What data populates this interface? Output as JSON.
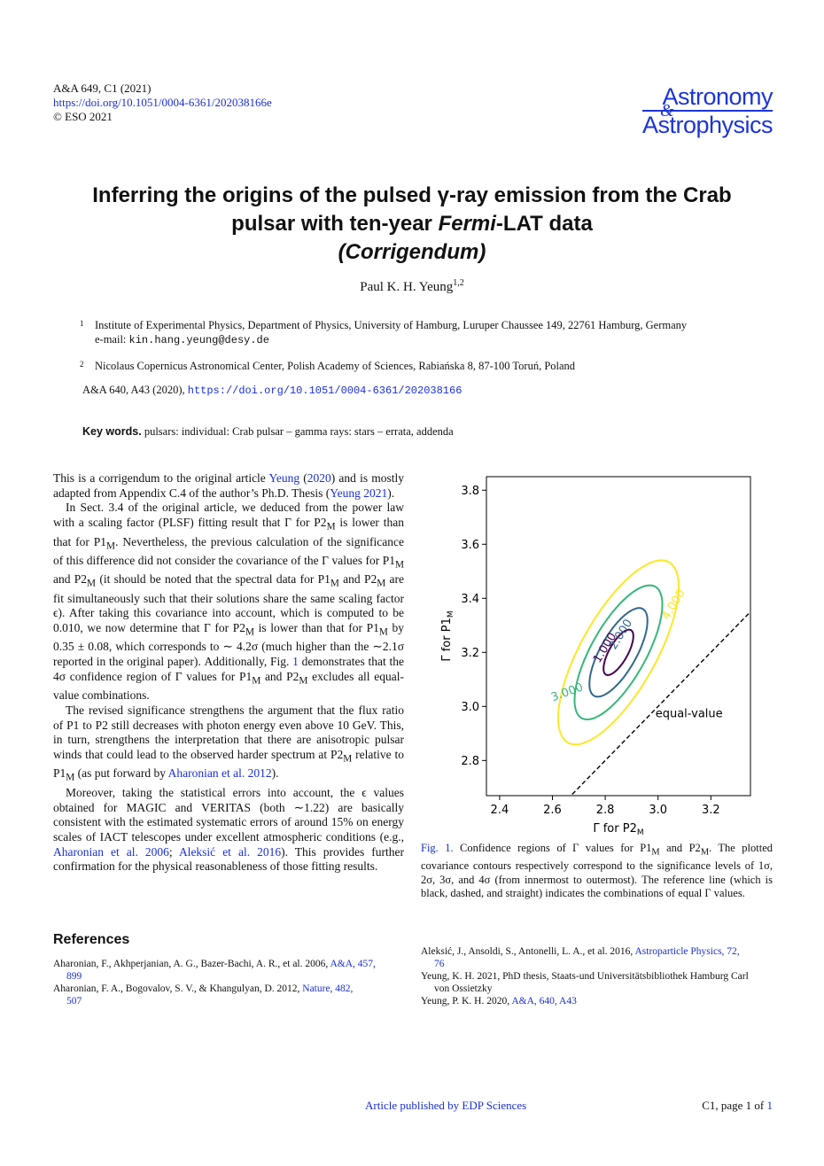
{
  "header": {
    "journal_ref": "A&A 649, C1 (2021)",
    "doi": "https://doi.org/10.1051/0004-6361/202038166e",
    "copyright": "© ESO 2021"
  },
  "logo": {
    "line1": "Astronomy",
    "amp": "&",
    "line2": "Astrophysics"
  },
  "title": {
    "line1": "Inferring the origins of the pulsed γ-ray emission from the Crab",
    "line2_a": "pulsar with ten-year ",
    "line2_fermi": "Fermi",
    "line2_b": "-LAT data",
    "line3": "(Corrigendum)"
  },
  "author": {
    "name": "Paul K. H. Yeung",
    "sup": "1,2"
  },
  "affiliations": [
    {
      "num": "1",
      "text": "Institute of Experimental Physics, Department of Physics, University of Hamburg, Luruper Chaussee 149, 22761 Hamburg, Germany",
      "email_label": "e-mail: ",
      "email": "kin.hang.yeung@desy.de"
    },
    {
      "num": "2",
      "text": "Nicolaus Copernicus Astronomical Center, Polish Academy of Sciences, Rabiańska 8, 87-100 Toruń, Poland"
    }
  ],
  "original_ref": {
    "text": "A&A 640, A43 (2020), ",
    "doi": "https://doi.org/10.1051/0004-6361/202038166"
  },
  "keywords": {
    "label": "Key words.",
    "text": "pulsars: individual: Crab pulsar – gamma rays: stars – errata, addenda"
  },
  "body": {
    "p1_a": "This is a corrigendum to the original article ",
    "p1_l1": "Yeung",
    "p1_b": " (",
    "p1_l2": "2020",
    "p1_c": ") and is mostly adapted from Appendix C.4 of the author’s Ph.D. Thesis (",
    "p1_l3": "Yeung 2021",
    "p1_d": ").",
    "p2_a": "In Sect. 3.4 of the original article, we deduced from the power law with a scaling factor (PLSF) fitting result that Γ for P2",
    "p2_b": " is lower than that for P1",
    "p2_c": ". Nevertheless, the previous calculation of the significance of this difference did not consider the covariance of the Γ values for P1",
    "p2_d": " and P2",
    "p2_e": " (it should be noted that the spectral data for P1",
    "p2_f": " and P2",
    "p2_g": " are fit simultaneously such that their solutions share the same scaling factor ϵ). After taking this covariance into account, which is computed to be 0.010, we now determine that Γ for P2",
    "p2_h": " is lower than that for P1",
    "p2_i": " by 0.35 ± 0.08, which corresponds to ∼ 4.2σ (much higher than the ∼2.1σ reported in the original paper). Additionally, Fig. ",
    "p2_link": "1",
    "p2_j": " demonstrates that the 4σ confidence region of Γ values for P1",
    "p2_k": " and P2",
    "p2_l": " excludes all equal-value combinations.",
    "p3_a": "The revised significance strengthens the argument that the flux ratio of P1 to P2 still decreases with photon energy even above 10 GeV. This, in turn, strengthens the interpretation that there are anisotropic pulsar winds that could lead to the observed harder spectrum at P2",
    "p3_b": " relative to P1",
    "p3_c": " (as put forward by ",
    "p3_link": "Aharonian et al. 2012",
    "p3_d": ").",
    "p4_a": "Moreover, taking the statistical errors into account, the ϵ values obtained for MAGIC and VERITAS (both ∼1.22) are basically consistent with the estimated systematic errors of around 15% on energy scales of IACT telescopes under excellent atmospheric conditions (e.g., ",
    "p4_l1": "Aharonian et al. 2006",
    "p4_b": "; ",
    "p4_l2": "Aleksić et al. 2016",
    "p4_c": "). This provides further confirmation for the physical reasonableness of those fitting results.",
    "sub_m": "M"
  },
  "references_heading": "References",
  "references_left": [
    {
      "text": "Aharonian, F., Akhperjanian, A. G., Bazer-Bachi, A. R., et al. 2006, ",
      "link": "A&A, 457,",
      "cont": "899"
    },
    {
      "text": "Aharonian, F. A., Bogovalov, S. V., & Khangulyan, D. 2012, ",
      "link": "Nature, 482,",
      "cont": "507"
    }
  ],
  "references_right": [
    {
      "text": "Aleksić, J., Ansoldi, S., Antonelli, L. A., et al. 2016, ",
      "link": "Astroparticle Physics, 72,",
      "cont": "76"
    },
    {
      "text": "Yeung, K. H. 2021, PhD thesis, Staats-und Universitätsbibliothek Hamburg Carl",
      "link": "",
      "cont": "von Ossietzky"
    },
    {
      "text": "Yeung, P. K. H. 2020, ",
      "link": "A&A, 640, A43",
      "cont": ""
    }
  ],
  "caption": {
    "label": "Fig. 1.",
    "a": " Confidence regions of Γ values for P1",
    "b": " and P2",
    "c": ". The plotted covariance contours respectively correspond to the significance levels of 1σ, 2σ, 3σ, and 4σ (from innermost to outermost). The reference line (which is black, dashed, and straight) indicates the combinations of equal Γ values."
  },
  "footer": {
    "published": "Article published by EDP Sciences",
    "page_prefix": "C1, page 1 of ",
    "page_total": "1"
  },
  "chart_data": {
    "type": "contour",
    "xlabel_base": "Γ for P2",
    "xlabel_sub": "M",
    "ylabel_base": "Γ for P1",
    "ylabel_sub": "M",
    "xlim": [
      2.35,
      3.35
    ],
    "ylim": [
      2.67,
      3.85
    ],
    "xticks": [
      "2.4",
      "2.6",
      "2.8",
      "3.0",
      "3.2"
    ],
    "yticks": [
      "2.8",
      "3.0",
      "3.2",
      "3.4",
      "3.6",
      "3.8"
    ],
    "center": [
      2.85,
      3.2
    ],
    "levels": [
      {
        "label": "1.000",
        "color": "#440154",
        "sigma": 1
      },
      {
        "label": "2.000",
        "color": "#31688e",
        "sigma": 2
      },
      {
        "label": "3.000",
        "color": "#35b779",
        "sigma": 3
      },
      {
        "label": "4.000",
        "color": "#fde725",
        "sigma": 4
      }
    ],
    "reference_line": {
      "label": "equal-value",
      "style": "dashed",
      "color": "#000000"
    }
  }
}
